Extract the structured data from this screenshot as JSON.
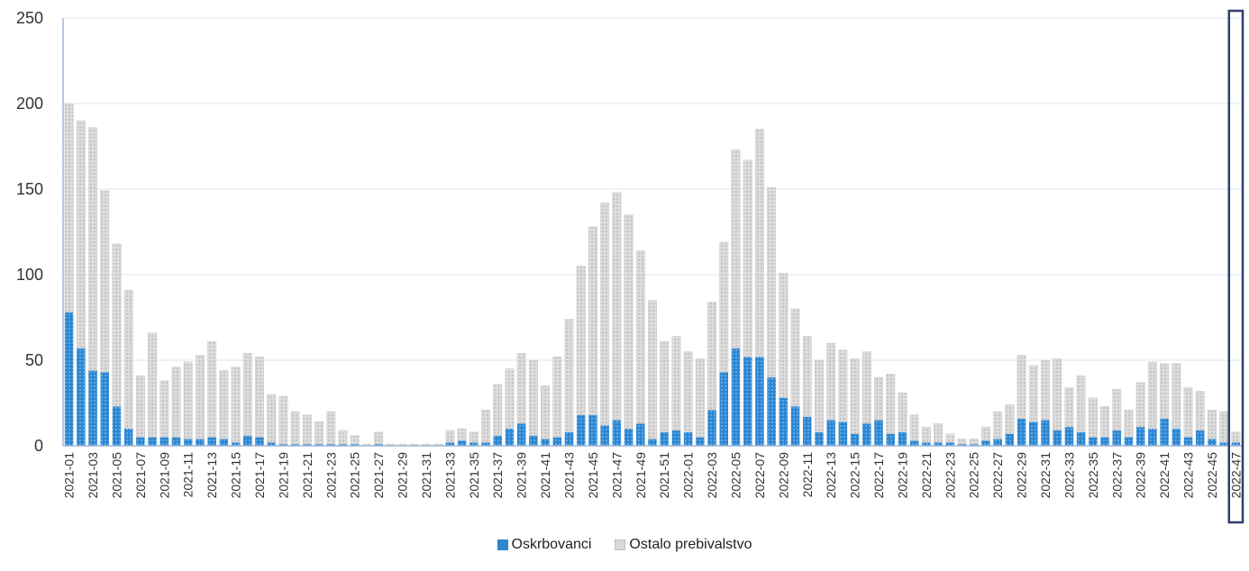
{
  "chart_data": {
    "type": "bar",
    "stacked": true,
    "title": "",
    "xlabel": "",
    "ylabel": "",
    "ylim": [
      0,
      250
    ],
    "yticks": [
      0,
      50,
      100,
      150,
      200,
      250
    ],
    "grid": "horizontal",
    "legend_position": "bottom",
    "highlighted_category": "2022-47",
    "colors": {
      "oskrbovanci": "#2e86d1",
      "ostalo": "#d9d9d9",
      "highlight_box": "#2f3f6e",
      "grid": "#dce6f2",
      "axis": "#9fb7d8"
    },
    "categories": [
      "2021-01",
      "2021-02",
      "2021-03",
      "2021-04",
      "2021-05",
      "2021-06",
      "2021-07",
      "2021-08",
      "2021-09",
      "2021-10",
      "2021-11",
      "2021-12",
      "2021-13",
      "2021-14",
      "2021-15",
      "2021-16",
      "2021-17",
      "2021-18",
      "2021-19",
      "2021-20",
      "2021-21",
      "2021-22",
      "2021-23",
      "2021-24",
      "2021-25",
      "2021-26",
      "2021-27",
      "2021-28",
      "2021-29",
      "2021-30",
      "2021-31",
      "2021-32",
      "2021-33",
      "2021-34",
      "2021-35",
      "2021-36",
      "2021-37",
      "2021-38",
      "2021-39",
      "2021-40",
      "2021-41",
      "2021-42",
      "2021-43",
      "2021-44",
      "2021-45",
      "2021-46",
      "2021-47",
      "2021-48",
      "2021-49",
      "2021-50",
      "2021-51",
      "2021-52",
      "2022-01",
      "2022-02",
      "2022-03",
      "2022-04",
      "2022-05",
      "2022-06",
      "2022-07",
      "2022-08",
      "2022-09",
      "2022-10",
      "2022-11",
      "2022-12",
      "2022-13",
      "2022-14",
      "2022-15",
      "2022-16",
      "2022-17",
      "2022-18",
      "2022-19",
      "2022-20",
      "2022-21",
      "2022-22",
      "2022-23",
      "2022-24",
      "2022-25",
      "2022-26",
      "2022-27",
      "2022-28",
      "2022-29",
      "2022-30",
      "2022-31",
      "2022-32",
      "2022-33",
      "2022-34",
      "2022-35",
      "2022-36",
      "2022-37",
      "2022-38",
      "2022-39",
      "2022-40",
      "2022-41",
      "2022-42",
      "2022-43",
      "2022-44",
      "2022-45",
      "2022-46",
      "2022-47"
    ],
    "series": [
      {
        "name": "Oskrbovanci",
        "values": [
          78,
          57,
          44,
          43,
          23,
          10,
          5,
          5,
          5,
          5,
          4,
          4,
          5,
          4,
          2,
          6,
          5,
          2,
          1,
          1,
          1,
          1,
          1,
          1,
          1,
          0,
          1,
          0,
          0,
          0,
          0,
          0,
          2,
          3,
          2,
          2,
          6,
          10,
          13,
          6,
          4,
          5,
          8,
          18,
          18,
          12,
          15,
          10,
          13,
          4,
          8,
          9,
          8,
          5,
          21,
          43,
          57,
          52,
          52,
          40,
          28,
          23,
          17,
          8,
          15,
          14,
          7,
          13,
          15,
          7,
          8,
          3,
          2,
          2,
          2,
          1,
          1,
          3,
          4,
          7,
          16,
          14,
          15,
          9,
          11,
          8,
          5,
          5,
          9,
          5,
          11,
          10,
          16,
          10,
          5,
          9,
          4,
          2,
          2
        ]
      },
      {
        "name": "Ostalo prebivalstvo",
        "values": [
          122,
          133,
          142,
          106,
          95,
          81,
          36,
          61,
          33,
          41,
          45,
          49,
          56,
          40,
          44,
          48,
          47,
          28,
          28,
          19,
          17,
          13,
          19,
          8,
          5,
          1,
          7,
          1,
          1,
          1,
          1,
          1,
          7,
          7,
          6,
          19,
          30,
          35,
          41,
          44,
          31,
          47,
          66,
          87,
          110,
          130,
          133,
          125,
          101,
          81,
          53,
          55,
          47,
          46,
          63,
          76,
          116,
          115,
          133,
          111,
          73,
          57,
          47,
          42,
          45,
          42,
          44,
          42,
          25,
          35,
          23,
          15,
          9,
          11,
          5,
          3,
          3,
          8,
          16,
          17,
          37,
          33,
          35,
          42,
          23,
          33,
          23,
          18,
          24,
          16,
          26,
          39,
          32,
          38,
          29,
          23,
          17,
          18,
          6
        ]
      }
    ]
  }
}
